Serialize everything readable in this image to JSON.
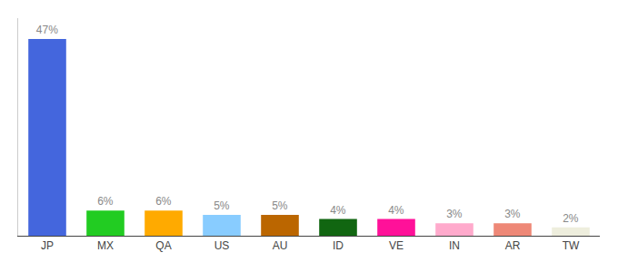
{
  "chart_data": {
    "type": "bar",
    "categories": [
      "JP",
      "MX",
      "QA",
      "US",
      "AU",
      "ID",
      "VE",
      "IN",
      "AR",
      "TW"
    ],
    "values": [
      47,
      6,
      6,
      5,
      5,
      4,
      4,
      3,
      3,
      2
    ],
    "value_labels": [
      "47%",
      "6%",
      "6%",
      "5%",
      "5%",
      "4%",
      "4%",
      "3%",
      "3%",
      "2%"
    ],
    "colors": [
      "#4466dd",
      "#22cc22",
      "#ffaa00",
      "#88ccff",
      "#bb6600",
      "#116611",
      "#ff1199",
      "#ffaacc",
      "#ee8877",
      "#eeeedd"
    ],
    "ylim": [
      0,
      52
    ],
    "data_labels": true,
    "tick_labels": "x",
    "grid": false
  }
}
